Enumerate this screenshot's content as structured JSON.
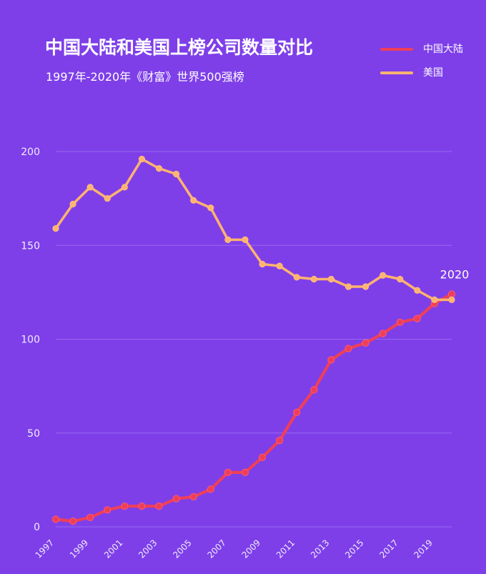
{
  "header": {
    "title": "中国大陆和美国上榜公司数量对比",
    "subtitle": "1997年-2020年《财富》世界500强榜"
  },
  "legend": {
    "items": [
      {
        "label": "中国大陆",
        "color": "#ee3f58"
      },
      {
        "label": "美国",
        "color": "#ffb36f"
      }
    ]
  },
  "chart_data": {
    "type": "line",
    "title": "中国大陆和美国上榜公司数量对比",
    "subtitle": "1997年-2020年《财富》世界500强榜",
    "xlabel": "",
    "ylabel": "",
    "xlim": [
      1997,
      2020
    ],
    "ylim": [
      0,
      200
    ],
    "grid": true,
    "legend_position": "top-right",
    "x": [
      1997,
      1998,
      1999,
      2000,
      2001,
      2002,
      2003,
      2004,
      2005,
      2006,
      2007,
      2008,
      2009,
      2010,
      2011,
      2012,
      2013,
      2014,
      2015,
      2016,
      2017,
      2018,
      2019,
      2020
    ],
    "x_tick_labels": [
      "1997",
      "1999",
      "2001",
      "2003",
      "2005",
      "2007",
      "2009",
      "2011",
      "2013",
      "2015",
      "2017",
      "2019"
    ],
    "y_tick_labels": [
      "0",
      "50",
      "100",
      "150",
      "200"
    ],
    "series": [
      {
        "name": "中国大陆",
        "color": "#ee3f58",
        "values": [
          4,
          3,
          5,
          9,
          11,
          11,
          11,
          15,
          16,
          20,
          29,
          29,
          37,
          46,
          61,
          73,
          89,
          95,
          98,
          103,
          109,
          111,
          119,
          124
        ]
      },
      {
        "name": "美国",
        "color": "#ffb36f",
        "values": [
          159,
          172,
          181,
          175,
          181,
          196,
          191,
          188,
          174,
          170,
          153,
          153,
          140,
          139,
          133,
          132,
          132,
          128,
          128,
          134,
          132,
          126,
          121,
          121
        ]
      }
    ],
    "annotations": [
      {
        "text": "2020",
        "x": 2020,
        "y": 124
      }
    ]
  }
}
